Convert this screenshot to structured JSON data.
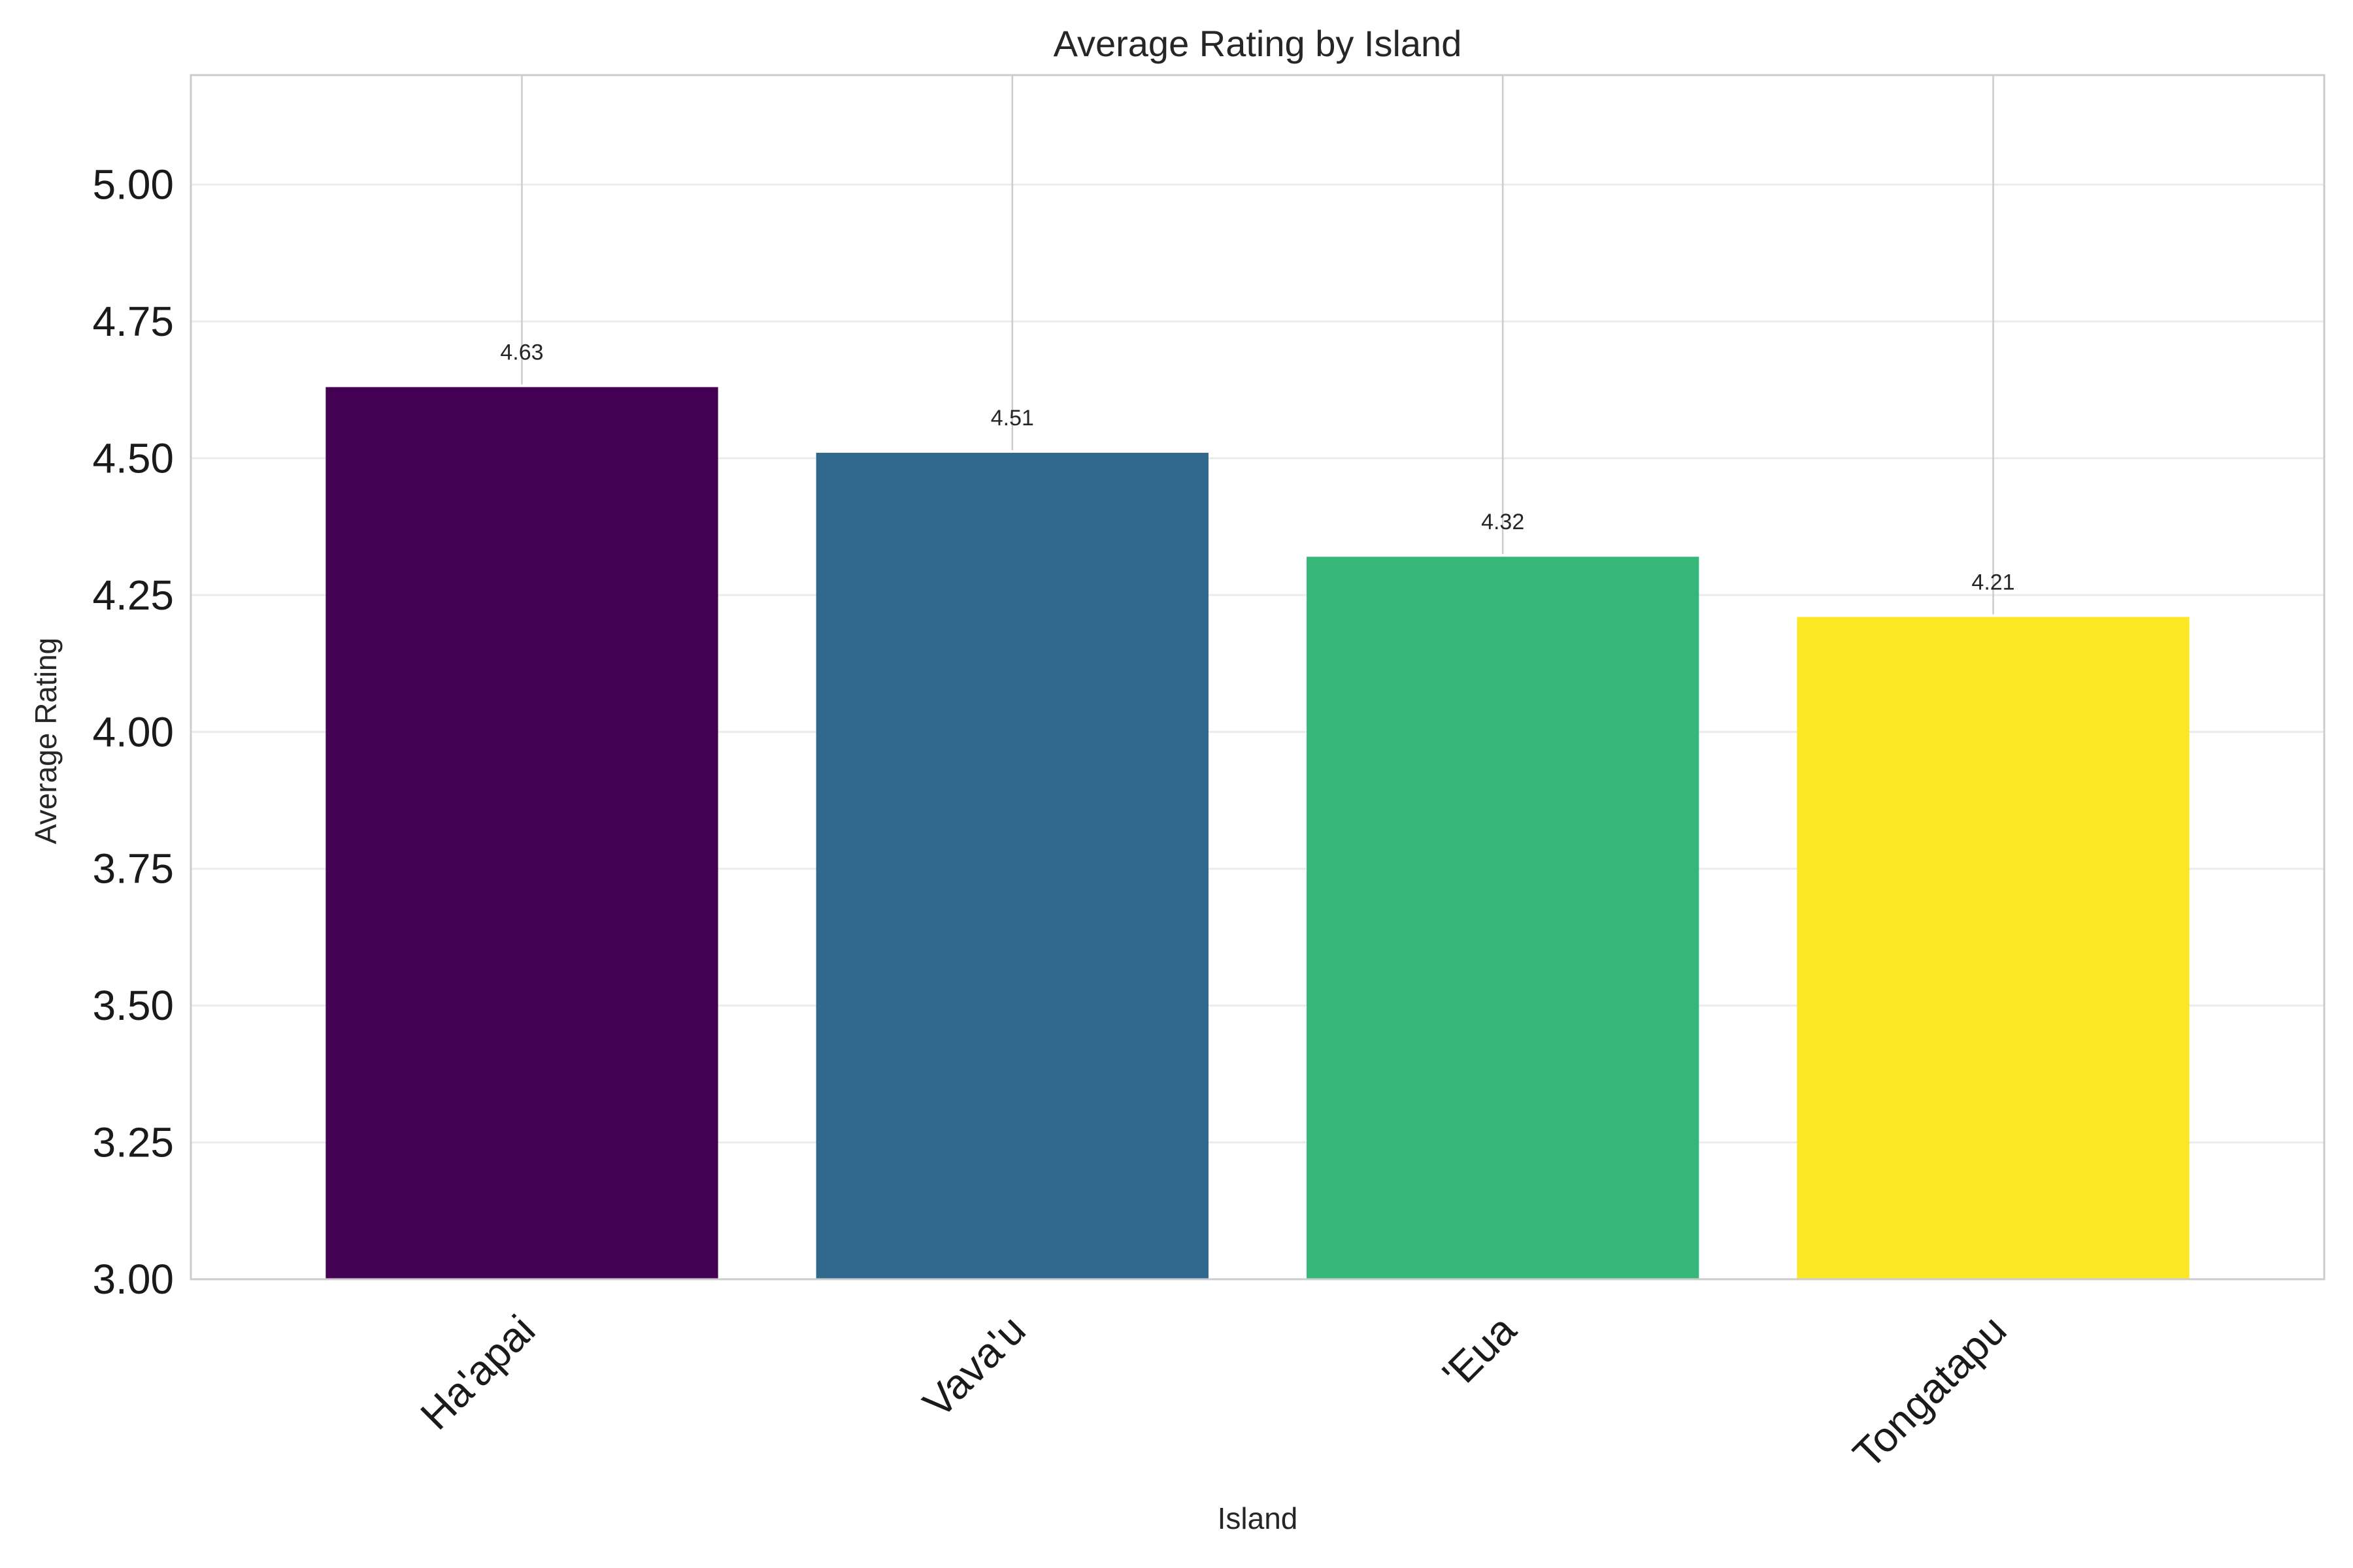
{
  "chart_data": {
    "type": "bar",
    "title": "Average Rating by Island",
    "xlabel": "Island",
    "ylabel": "Average Rating",
    "categories": [
      "Ha'apai",
      "Vava'u",
      "'Eua",
      "Tongatapu"
    ],
    "values": [
      4.63,
      4.51,
      4.32,
      4.21
    ],
    "value_labels": [
      "4.63",
      "4.51",
      "4.32",
      "4.21"
    ],
    "colors": [
      "#440154",
      "#31688e",
      "#35b779",
      "#fde725"
    ],
    "ylim": [
      3.0,
      5.2
    ],
    "yticks": [
      3.0,
      3.25,
      3.5,
      3.75,
      4.0,
      4.25,
      4.5,
      4.75,
      5.0
    ],
    "ytick_labels": [
      "3.00",
      "3.25",
      "3.50",
      "3.75",
      "4.00",
      "4.25",
      "4.50",
      "4.75",
      "5.00"
    ],
    "xtick_rotation_deg": 45,
    "grid": true,
    "legend": "none"
  }
}
